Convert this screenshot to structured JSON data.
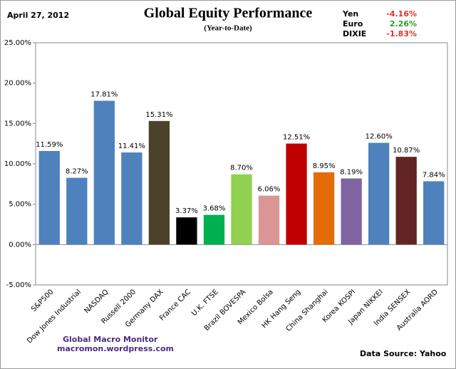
{
  "chart_data": {
    "type": "bar",
    "date": "April 27, 2012",
    "title": "Global Equity Performance",
    "subtitle": "(Year-to-Date)",
    "currencies": [
      {
        "name": "Yen",
        "value": "-4.16%",
        "color": "#e03030"
      },
      {
        "name": "Euro",
        "value": "2.26%",
        "color": "#2aa02a"
      },
      {
        "name": "DIXIE",
        "value": "-1.83%",
        "color": "#e03030"
      }
    ],
    "categories": [
      "S&P500",
      "Dow Jones Industrial",
      "NASDAQ",
      "Russell 2000",
      "Germany DAX",
      "France CAC",
      "U.K. FTSE",
      "Brazil BOVESPA",
      "Mexico Bolsa",
      "HK Hang Seng",
      "China Shanghai",
      "Korea KOSPI",
      "Japan NIKKEI",
      "India SENSEX",
      "Australia AORD"
    ],
    "values": [
      11.59,
      8.27,
      17.81,
      11.41,
      15.31,
      3.37,
      3.68,
      8.7,
      6.06,
      12.51,
      8.95,
      8.19,
      12.6,
      10.87,
      7.84
    ],
    "value_labels": [
      "11.59%",
      "8.27%",
      "17.81%",
      "11.41%",
      "15.31%",
      "3.37%",
      "3.68%",
      "8.70%",
      "6.06%",
      "12.51%",
      "8.95%",
      "8.19%",
      "12.60%",
      "10.87%",
      "7.84%"
    ],
    "colors": [
      "#4f81bd",
      "#4f81bd",
      "#4f81bd",
      "#4f81bd",
      "#4a432a",
      "#000000",
      "#00b050",
      "#92d050",
      "#d99694",
      "#c00000",
      "#e36c09",
      "#8064a2",
      "#4f81bd",
      "#632523",
      "#4f81bd"
    ],
    "ylim": [
      -5,
      25
    ],
    "yticks": [
      {
        "value": -5,
        "label": "-5.00%"
      },
      {
        "value": 0,
        "label": "0.00%"
      },
      {
        "value": 5,
        "label": "5.00%"
      },
      {
        "value": 10,
        "label": "10.00%"
      },
      {
        "value": 15,
        "label": "15.00%"
      },
      {
        "value": 20,
        "label": "20.00%"
      },
      {
        "value": 25,
        "label": "25.00%"
      }
    ],
    "grid": false,
    "footer": {
      "source": "Global Macro Monitor",
      "url": "macromon.wordpress.com",
      "data_source": "Data Source:  Yahoo"
    }
  }
}
